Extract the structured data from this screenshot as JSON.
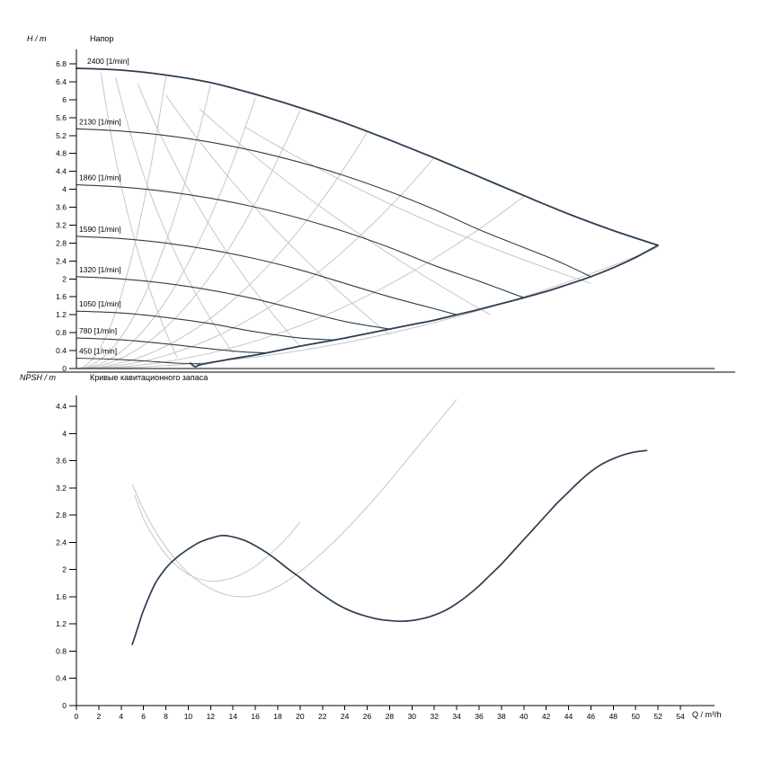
{
  "colors": {
    "primary_curve": "#2c3e50",
    "secondary_curve": "#c6c6c6",
    "axis": "#000000",
    "text": "#000000",
    "background": "#ffffff"
  },
  "chart_data": [
    {
      "type": "line",
      "title": "Напор",
      "ylabel": "H / m",
      "xlabel": "Q / m³/h",
      "xlim": [
        0,
        54
      ],
      "ylim": [
        0,
        6.8
      ],
      "grid": false,
      "y_ticks": [
        "0",
        "0.4",
        "0.8",
        "1.2",
        "1.6",
        "2",
        "2.4",
        "2.8",
        "3.2",
        "3.6",
        "4",
        "4.4",
        "4.8",
        "5.2",
        "5.6",
        "6",
        "6.4",
        "6.8"
      ],
      "x_ticks": [
        0,
        2,
        4,
        6,
        8,
        10,
        12,
        14,
        16,
        18,
        20,
        22,
        24,
        26,
        28,
        30,
        32,
        34,
        36,
        38,
        40,
        42,
        44,
        46,
        48,
        50,
        52,
        54
      ],
      "series": [
        {
          "name": "2400",
          "label": "2400 [1/min]",
          "role": "envelope-top",
          "points": [
            [
              0,
              6.7
            ],
            [
              4,
              6.66
            ],
            [
              8,
              6.55
            ],
            [
              12,
              6.38
            ],
            [
              16,
              6.12
            ],
            [
              20,
              5.82
            ],
            [
              24,
              5.48
            ],
            [
              28,
              5.1
            ],
            [
              32,
              4.7
            ],
            [
              36,
              4.28
            ],
            [
              40,
              3.86
            ],
            [
              44,
              3.45
            ],
            [
              48,
              3.08
            ],
            [
              52,
              2.75
            ]
          ]
        },
        {
          "name": "2130",
          "label": "2130 [1/min]",
          "role": "speed-curve",
          "points": [
            [
              0,
              5.35
            ],
            [
              4,
              5.3
            ],
            [
              8,
              5.2
            ],
            [
              12,
              5.05
            ],
            [
              16,
              4.85
            ],
            [
              20,
              4.6
            ],
            [
              24,
              4.3
            ],
            [
              28,
              3.95
            ],
            [
              32,
              3.55
            ],
            [
              36,
              3.1
            ],
            [
              40,
              2.7
            ],
            [
              43,
              2.4
            ],
            [
              46,
              2.05
            ]
          ]
        },
        {
          "name": "1860",
          "label": "1860 [1/min]",
          "role": "speed-curve",
          "points": [
            [
              0,
              4.1
            ],
            [
              4,
              4.05
            ],
            [
              8,
              3.95
            ],
            [
              12,
              3.8
            ],
            [
              16,
              3.6
            ],
            [
              20,
              3.35
            ],
            [
              24,
              3.05
            ],
            [
              28,
              2.7
            ],
            [
              32,
              2.3
            ],
            [
              36,
              1.95
            ],
            [
              40,
              1.58
            ]
          ]
        },
        {
          "name": "1590",
          "label": "1590 [1/min]",
          "role": "speed-curve",
          "points": [
            [
              0,
              2.95
            ],
            [
              4,
              2.9
            ],
            [
              8,
              2.8
            ],
            [
              12,
              2.65
            ],
            [
              16,
              2.45
            ],
            [
              20,
              2.2
            ],
            [
              24,
              1.9
            ],
            [
              28,
              1.6
            ],
            [
              31,
              1.4
            ],
            [
              34,
              1.2
            ]
          ]
        },
        {
          "name": "1320",
          "label": "1320 [1/min]",
          "role": "speed-curve",
          "points": [
            [
              0,
              2.05
            ],
            [
              4,
              2.0
            ],
            [
              8,
              1.9
            ],
            [
              12,
              1.75
            ],
            [
              16,
              1.55
            ],
            [
              20,
              1.3
            ],
            [
              24,
              1.05
            ],
            [
              28,
              0.88
            ]
          ]
        },
        {
          "name": "1050",
          "label": "1050 [1/min]",
          "role": "speed-curve",
          "points": [
            [
              0,
              1.28
            ],
            [
              4,
              1.24
            ],
            [
              8,
              1.14
            ],
            [
              12,
              1.0
            ],
            [
              16,
              0.82
            ],
            [
              20,
              0.68
            ],
            [
              23,
              0.64
            ]
          ]
        },
        {
          "name": "780",
          "label": "780 [1/min]",
          "role": "speed-curve",
          "points": [
            [
              0,
              0.68
            ],
            [
              4,
              0.64
            ],
            [
              8,
              0.55
            ],
            [
              12,
              0.44
            ],
            [
              15,
              0.37
            ],
            [
              17,
              0.35
            ]
          ]
        },
        {
          "name": "450",
          "label": "450 [1/min]",
          "role": "speed-curve",
          "points": [
            [
              0,
              0.23
            ],
            [
              3,
              0.21
            ],
            [
              6,
              0.17
            ],
            [
              9,
              0.12
            ],
            [
              11.5,
              0.1
            ]
          ]
        }
      ],
      "envelope_lower": [
        [
          10.2,
          0.12
        ],
        [
          10.6,
          0.04
        ],
        [
          11,
          0.08
        ],
        [
          12,
          0.13
        ],
        [
          14,
          0.22
        ],
        [
          16,
          0.3
        ],
        [
          18,
          0.4
        ],
        [
          20,
          0.5
        ],
        [
          22,
          0.59
        ],
        [
          24,
          0.68
        ],
        [
          26,
          0.78
        ],
        [
          28,
          0.88
        ],
        [
          30,
          0.98
        ],
        [
          32,
          1.08
        ],
        [
          34,
          1.2
        ],
        [
          36,
          1.32
        ],
        [
          38,
          1.45
        ],
        [
          40,
          1.58
        ],
        [
          42,
          1.72
        ],
        [
          44,
          1.88
        ],
        [
          46,
          2.05
        ],
        [
          48,
          2.25
        ],
        [
          50,
          2.48
        ],
        [
          52,
          2.75
        ]
      ],
      "affinity_parabolas": [
        {
          "a": 0.102,
          "q_end": 8
        },
        {
          "a": 0.044,
          "q_end": 12
        },
        {
          "a": 0.0236,
          "q_end": 16
        },
        {
          "a": 0.0144,
          "q_end": 20
        },
        {
          "a": 0.0078,
          "q_end": 26
        },
        {
          "a": 0.0046,
          "q_end": 32
        },
        {
          "a": 0.0024,
          "q_end": 40
        },
        {
          "a": 0.001,
          "q_end": 52
        }
      ],
      "gray_arcs": [
        {
          "p0": [
            2.2,
            6.6
          ],
          "c": [
            4.5,
            2.6
          ],
          "p2": [
            9,
            0.25
          ]
        },
        {
          "p0": [
            3.5,
            6.5
          ],
          "c": [
            7,
            2.8
          ],
          "p2": [
            14,
            0.35
          ]
        },
        {
          "p0": [
            5.5,
            6.35
          ],
          "c": [
            11,
            3.0
          ],
          "p2": [
            20,
            0.5
          ]
        },
        {
          "p0": [
            8,
            6.1
          ],
          "c": [
            16,
            3.2
          ],
          "p2": [
            28,
            0.75
          ]
        },
        {
          "p0": [
            11,
            5.8
          ],
          "c": [
            22,
            3.3
          ],
          "p2": [
            37,
            1.2
          ]
        },
        {
          "p0": [
            15,
            5.4
          ],
          "c": [
            29,
            3.3
          ],
          "p2": [
            46,
            1.9
          ]
        }
      ]
    },
    {
      "type": "line",
      "title": "Кривые кавитационного запаса",
      "ylabel": "NPSH / m",
      "xlabel": "Q / m³/h",
      "xlim": [
        0,
        54
      ],
      "ylim": [
        0,
        4.4
      ],
      "grid": false,
      "y_ticks": [
        "0",
        "0.4",
        "0.8",
        "1.2",
        "1.6",
        "2",
        "2.4",
        "2.8",
        "3.2",
        "3.6",
        "4",
        "4.4"
      ],
      "x_ticks": [
        0,
        2,
        4,
        6,
        8,
        10,
        12,
        14,
        16,
        18,
        20,
        22,
        24,
        26,
        28,
        30,
        32,
        34,
        36,
        38,
        40,
        42,
        44,
        46,
        48,
        50,
        52,
        54
      ],
      "npsh_curve": [
        [
          5,
          0.9
        ],
        [
          5.5,
          1.15
        ],
        [
          6,
          1.4
        ],
        [
          7,
          1.78
        ],
        [
          8,
          2.02
        ],
        [
          9,
          2.18
        ],
        [
          10,
          2.3
        ],
        [
          11,
          2.4
        ],
        [
          12,
          2.46
        ],
        [
          13,
          2.5
        ],
        [
          14,
          2.48
        ],
        [
          15,
          2.43
        ],
        [
          16,
          2.35
        ],
        [
          17,
          2.25
        ],
        [
          18,
          2.13
        ],
        [
          19,
          2.0
        ],
        [
          20,
          1.88
        ],
        [
          21,
          1.75
        ],
        [
          22,
          1.63
        ],
        [
          23,
          1.52
        ],
        [
          24,
          1.43
        ],
        [
          25,
          1.36
        ],
        [
          26,
          1.31
        ],
        [
          27,
          1.27
        ],
        [
          28,
          1.25
        ],
        [
          29,
          1.24
        ],
        [
          30,
          1.25
        ],
        [
          31,
          1.28
        ],
        [
          32,
          1.33
        ],
        [
          33,
          1.4
        ],
        [
          34,
          1.5
        ],
        [
          35,
          1.62
        ],
        [
          36,
          1.76
        ],
        [
          37,
          1.92
        ],
        [
          38,
          2.08
        ],
        [
          39,
          2.26
        ],
        [
          40,
          2.44
        ],
        [
          41,
          2.62
        ],
        [
          42,
          2.8
        ],
        [
          43,
          2.98
        ],
        [
          44,
          3.14
        ],
        [
          45,
          3.3
        ],
        [
          46,
          3.44
        ],
        [
          47,
          3.55
        ],
        [
          48,
          3.63
        ],
        [
          49,
          3.69
        ],
        [
          50,
          3.73
        ],
        [
          51,
          3.75
        ]
      ],
      "gray_curves": [
        [
          [
            5,
            3.25
          ],
          [
            6,
            2.88
          ],
          [
            7,
            2.58
          ],
          [
            8,
            2.33
          ],
          [
            9,
            2.12
          ],
          [
            10,
            1.95
          ],
          [
            11,
            1.82
          ],
          [
            12,
            1.72
          ],
          [
            13,
            1.65
          ],
          [
            14,
            1.61
          ],
          [
            15,
            1.6
          ],
          [
            16,
            1.62
          ],
          [
            17,
            1.67
          ],
          [
            18,
            1.75
          ],
          [
            19,
            1.85
          ],
          [
            20,
            1.97
          ],
          [
            22,
            2.25
          ],
          [
            24,
            2.57
          ],
          [
            26,
            2.92
          ],
          [
            28,
            3.3
          ],
          [
            30,
            3.7
          ],
          [
            32,
            4.1
          ],
          [
            34,
            4.5
          ]
        ],
        [
          [
            5.2,
            3.1
          ],
          [
            6,
            2.75
          ],
          [
            7,
            2.45
          ],
          [
            8,
            2.22
          ],
          [
            9,
            2.05
          ],
          [
            10,
            1.93
          ],
          [
            11,
            1.86
          ],
          [
            12,
            1.83
          ],
          [
            13,
            1.84
          ],
          [
            14,
            1.88
          ],
          [
            15,
            1.95
          ],
          [
            16,
            2.05
          ],
          [
            17,
            2.18
          ],
          [
            18,
            2.33
          ],
          [
            19,
            2.5
          ],
          [
            20,
            2.7
          ]
        ]
      ]
    }
  ]
}
